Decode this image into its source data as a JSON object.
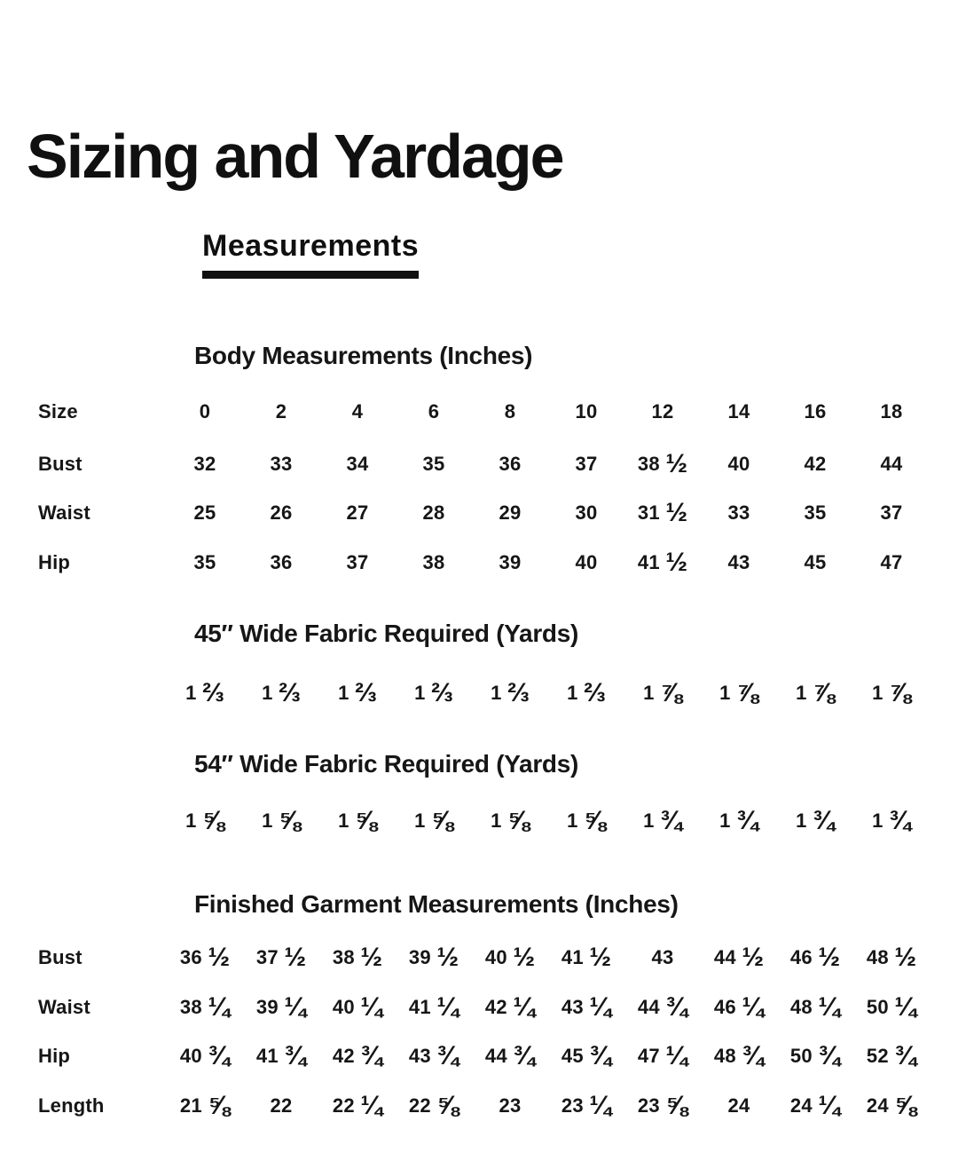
{
  "page": {
    "title": "Sizing and Yardage",
    "subtitle": "Measurements"
  },
  "body_measurements": {
    "heading": "Body Measurements (Inches)",
    "rows": [
      {
        "label": "Size",
        "values": [
          "0",
          "2",
          "4",
          "6",
          "8",
          "10",
          "12",
          "14",
          "16",
          "18"
        ]
      },
      {
        "label": "Bust",
        "values": [
          "32",
          "33",
          "34",
          "35",
          "36",
          "37",
          "38 ½",
          "40",
          "42",
          "44"
        ]
      },
      {
        "label": "Waist",
        "values": [
          "25",
          "26",
          "27",
          "28",
          "29",
          "30",
          "31 ½",
          "33",
          "35",
          "37"
        ]
      },
      {
        "label": "Hip",
        "values": [
          "35",
          "36",
          "37",
          "38",
          "39",
          "40",
          "41 ½",
          "43",
          "45",
          "47"
        ]
      }
    ]
  },
  "fabric_45": {
    "heading": "45″ Wide Fabric Required (Yards)",
    "values": [
      "1 ⅔",
      "1 ⅔",
      "1 ⅔",
      "1 ⅔",
      "1 ⅔",
      "1 ⅔",
      "1 ⅞",
      "1 ⅞",
      "1 ⅞",
      "1 ⅞"
    ]
  },
  "fabric_54": {
    "heading": "54″ Wide Fabric Required (Yards)",
    "values": [
      "1 ⅝",
      "1 ⅝",
      "1 ⅝",
      "1 ⅝",
      "1 ⅝",
      "1 ⅝",
      "1 ¾",
      "1 ¾",
      "1 ¾",
      "1 ¾"
    ]
  },
  "finished_garment": {
    "heading": "Finished Garment Measurements (Inches)",
    "rows": [
      {
        "label": "Bust",
        "values": [
          "36 ½",
          "37 ½",
          "38 ½",
          "39 ½",
          "40 ½",
          "41 ½",
          "43",
          "44 ½",
          "46 ½",
          "48 ½"
        ]
      },
      {
        "label": "Waist",
        "values": [
          "38 ¼",
          "39 ¼",
          "40 ¼",
          "41 ¼",
          "42 ¼",
          "43 ¼",
          "44 ¾",
          "46 ¼",
          "48 ¼",
          "50 ¼"
        ]
      },
      {
        "label": "Hip",
        "values": [
          "40 ¾",
          "41 ¾",
          "42 ¾",
          "43 ¾",
          "44 ¾",
          "45 ¾",
          "47 ¼",
          "48 ¾",
          "50 ¾",
          "52 ¾"
        ]
      },
      {
        "label": "Length",
        "values": [
          "21 ⅝",
          "22",
          "22 ¼",
          "22 ⅝",
          "23",
          "23 ¼",
          "23 ⅝",
          "24",
          "24 ¼",
          "24 ⅝"
        ]
      }
    ]
  }
}
